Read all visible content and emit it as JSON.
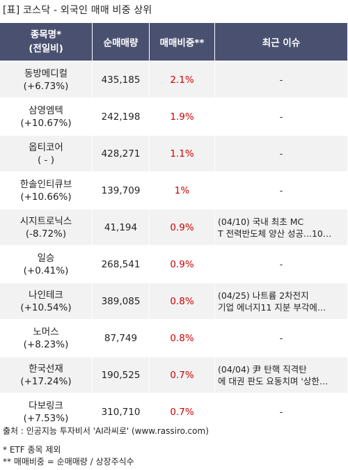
{
  "title": "[표] 코스닥 - 외국인 매매 비중 상위",
  "header": {
    "col_name": "종목명*\n(전일비)",
    "col_volume": "순매매량",
    "col_ratio": "매매비중**",
    "col_issue": "최근 이슈"
  },
  "rows": [
    {
      "name": "동방메디컬",
      "change": "(+6.73%)",
      "volume": "435,185",
      "ratio": "2.1%",
      "issue": "-"
    },
    {
      "name": "삼영엠텍",
      "change": "(+10.67%)",
      "volume": "242,198",
      "ratio": "1.9%",
      "issue": "-"
    },
    {
      "name": "옵티코어",
      "change": "( - )",
      "volume": "428,271",
      "ratio": "1.1%",
      "issue": "-"
    },
    {
      "name": "한솔인티큐브",
      "change": "(+10.66%)",
      "volume": "139,709",
      "ratio": "1%",
      "issue": "-"
    },
    {
      "name": "시지트로닉스",
      "change": "(-8.72%)",
      "volume": "41,194",
      "ratio": "0.9%",
      "issue": "(04/10) 국내 최초 MC\nT 전력반도체 양산 성공...10…"
    },
    {
      "name": "일승",
      "change": "(+0.41%)",
      "volume": "268,541",
      "ratio": "0.9%",
      "issue": "-"
    },
    {
      "name": "나인테크",
      "change": "(+10.54%)",
      "volume": "389,085",
      "ratio": "0.8%",
      "issue": "(04/25) 나트륨 2차전지\n 기업 에너지11 지분 부각에…"
    },
    {
      "name": "노머스",
      "change": "(+8.23%)",
      "volume": "87,749",
      "ratio": "0.8%",
      "issue": "-"
    },
    {
      "name": "한국선재",
      "change": "(+17.24%)",
      "volume": "190,525",
      "ratio": "0.7%",
      "issue": "(04/04) 尹 탄핵 직격탄\n에 대권 판도 요동치며 '상한…"
    },
    {
      "name": "다보링크",
      "change": "(+7.53%)",
      "volume": "310,710",
      "ratio": "0.7%",
      "issue": "-"
    }
  ],
  "footer": {
    "source": "출처 : 인공지능 투자비서 'AI라씨로' (www.rassiro.com)",
    "note1": "* ETF 종목 제외",
    "note2": "** 매매비중 = 순매매량 / 상장주식수"
  }
}
